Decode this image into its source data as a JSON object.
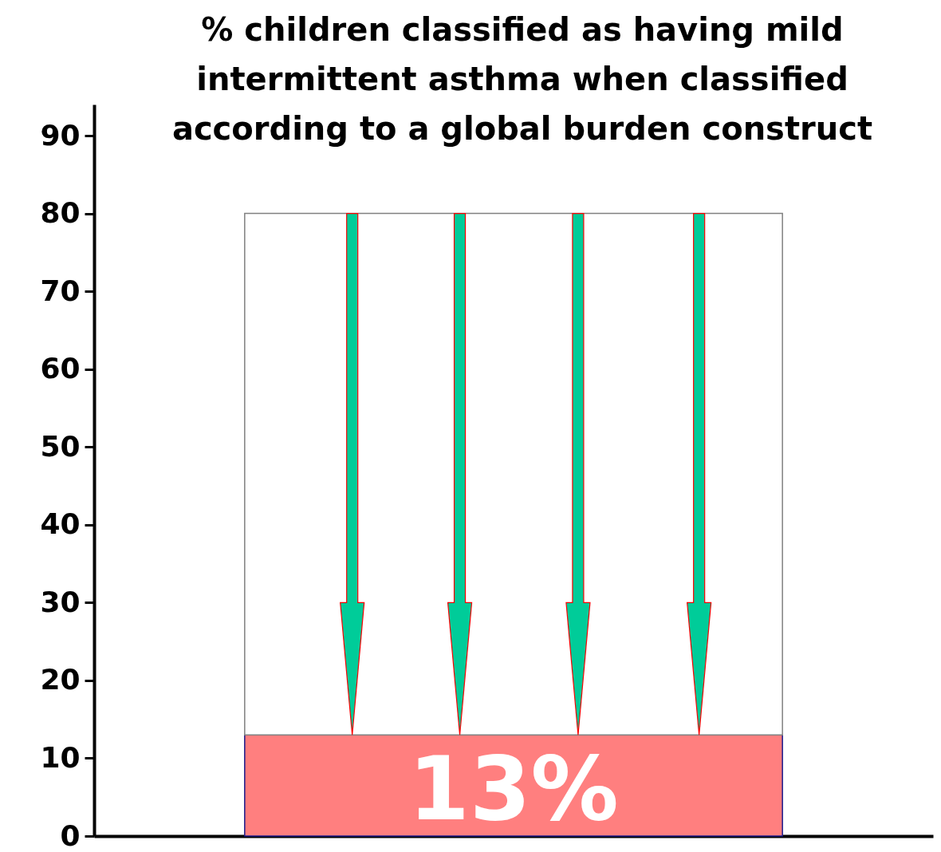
{
  "chart_data": {
    "type": "bar",
    "title": "% children classified as having mild intermittent asthma when classified according to a global burden construct",
    "categories": [
      null
    ],
    "stacked": true,
    "series": [
      {
        "color": "#ff7f7f",
        "values": [
          13
        ],
        "value_labels": [
          "13%"
        ]
      },
      {
        "color": "#ffffff",
        "values": [
          67
        ]
      }
    ],
    "ylim": [
      0,
      94
    ],
    "yticks": [
      0,
      10,
      20,
      30,
      40,
      50,
      60,
      70,
      80,
      90
    ],
    "grid": false
  }
}
